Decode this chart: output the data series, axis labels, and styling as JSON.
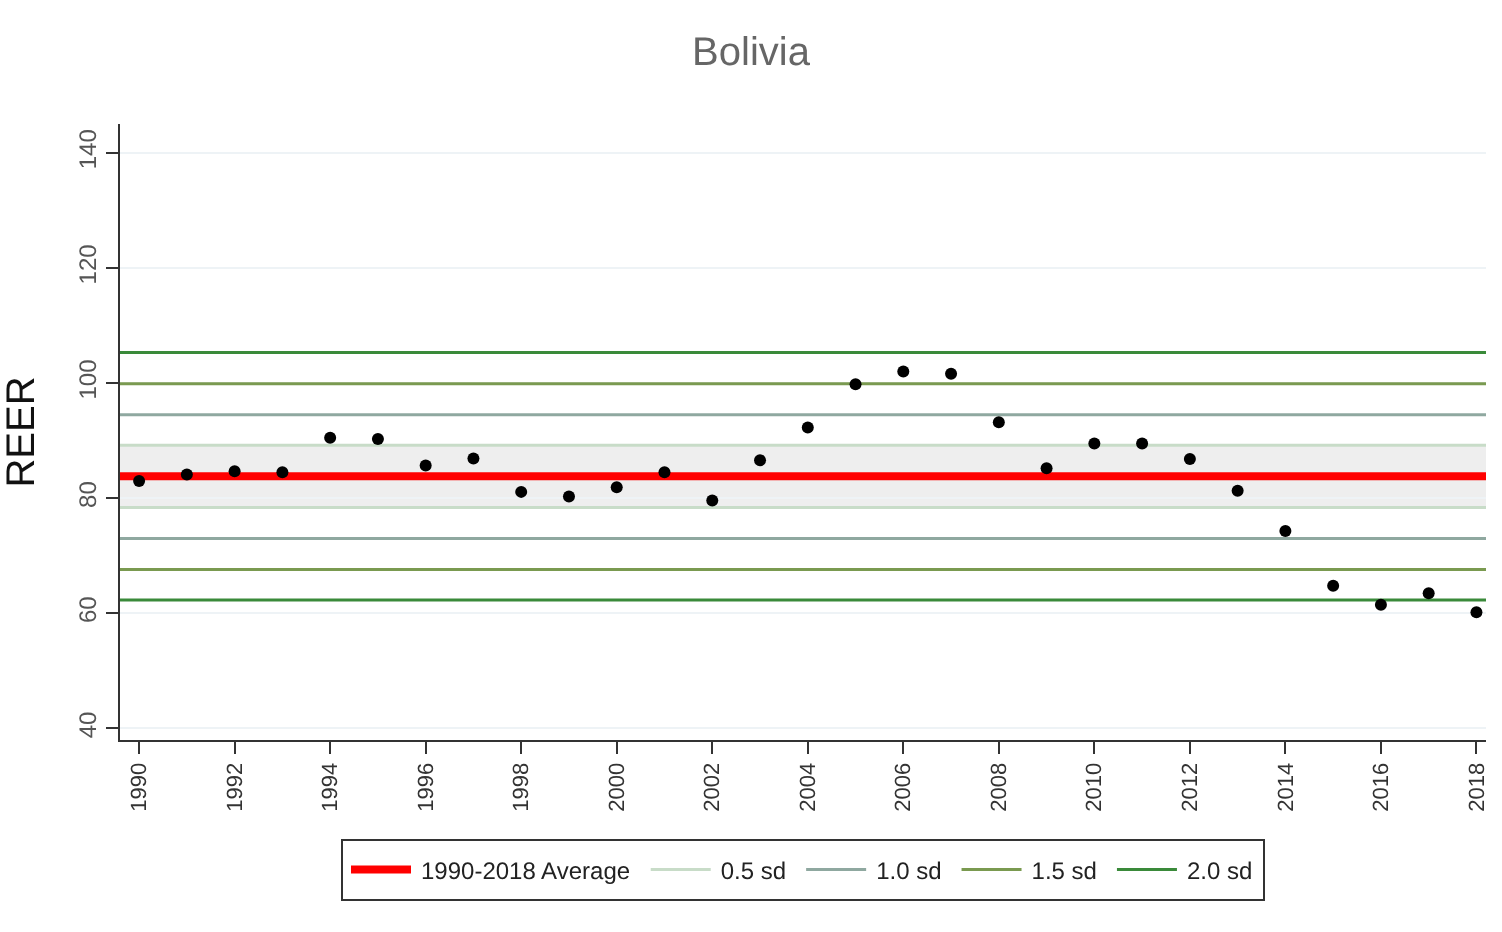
{
  "chart_data": {
    "type": "scatter",
    "title": "Bolivia",
    "ylabel": "REER",
    "x": [
      1990,
      1991,
      1992,
      1993,
      1994,
      1995,
      1996,
      1997,
      1998,
      1999,
      2000,
      2001,
      2002,
      2003,
      2004,
      2005,
      2006,
      2007,
      2008,
      2009,
      2010,
      2011,
      2012,
      2013,
      2014,
      2015,
      2016,
      2017,
      2018
    ],
    "series": [
      {
        "color": "#000000",
        "values": [
          83.0,
          84.1,
          84.7,
          84.5,
          90.5,
          90.3,
          85.7,
          86.9,
          81.1,
          80.3,
          81.9,
          84.5,
          79.6,
          86.6,
          92.3,
          99.8,
          102.0,
          101.6,
          93.2,
          85.2,
          89.5,
          89.5,
          86.8,
          81.3,
          74.3,
          64.8,
          61.5,
          63.5,
          60.2
        ]
      }
    ],
    "xlim": [
      1989.6,
      2018.2
    ],
    "xticks": [
      1990,
      1992,
      1994,
      1996,
      1998,
      2000,
      2002,
      2004,
      2006,
      2008,
      2010,
      2012,
      2014,
      2016,
      2018
    ],
    "ylim": [
      38,
      145
    ],
    "yticks": [
      40,
      60,
      80,
      100,
      120,
      140
    ],
    "bands": [
      {
        "axis": "y",
        "from": 78.4,
        "to": 89.2,
        "color": "#eeeeee"
      }
    ],
    "ref_lines": [
      {
        "axis": "y",
        "value": 83.8,
        "label": "1990-2018 Average",
        "color": "#ff0000"
      },
      {
        "axis": "y",
        "value": 89.2,
        "label": "0.5 sd",
        "color": "#c8dcc8"
      },
      {
        "axis": "y",
        "value": 78.4,
        "color": "#c8dcc8"
      },
      {
        "axis": "y",
        "value": 94.5,
        "label": "1.0 sd",
        "color": "#8fa8a0"
      },
      {
        "axis": "y",
        "value": 73.0,
        "color": "#8fa8a0"
      },
      {
        "axis": "y",
        "value": 99.9,
        "label": "1.5 sd",
        "color": "#7a9a50"
      },
      {
        "axis": "y",
        "value": 67.6,
        "color": "#7a9a50"
      },
      {
        "axis": "y",
        "value": 105.3,
        "label": "2.0 sd",
        "color": "#3a8a3a"
      },
      {
        "axis": "y",
        "value": 62.3,
        "color": "#3a8a3a"
      }
    ],
    "grid": "y",
    "legend": "bottom",
    "marker": "circle"
  }
}
